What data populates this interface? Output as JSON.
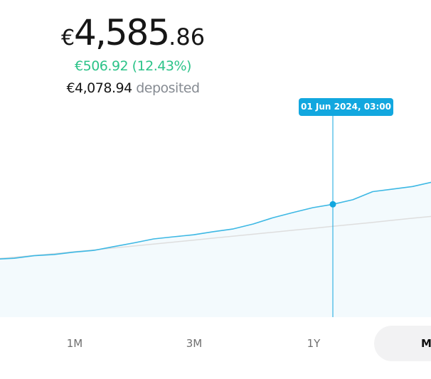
{
  "balance": {
    "currency": "€",
    "integer": "4,585",
    "decimal": ".86",
    "gain": "€506.92 (12.43%)",
    "deposited_amount": "€4,078.94",
    "deposited_label": "deposited"
  },
  "chart_data": {
    "type": "area",
    "tooltip_label": "01 Jun 2024, 03:00",
    "series": [
      {
        "values": [
          3998,
          4003,
          4016,
          4022,
          4034,
          4043,
          4062,
          4081,
          4101,
          4112,
          4122,
          4138,
          4152,
          4177,
          4209,
          4235,
          4260,
          4277,
          4300,
          4341,
          4354,
          4367,
          4390
        ]
      },
      {
        "values": [
          4000,
          4008,
          4017,
          4026,
          4036,
          4045,
          4055,
          4065,
          4075,
          4085,
          4095,
          4105,
          4115,
          4125,
          4135,
          4145,
          4155,
          4165,
          4175,
          4185,
          4196,
          4206,
          4216
        ]
      }
    ],
    "colors": {
      "line": "#3db8e4",
      "baseline": "#dedede",
      "fill": "#f3fafd",
      "crosshair": "#12a7df"
    },
    "hover_index": 17
  },
  "ranges": [
    "1M",
    "3M",
    "1Y",
    "M"
  ],
  "active_range": "M"
}
